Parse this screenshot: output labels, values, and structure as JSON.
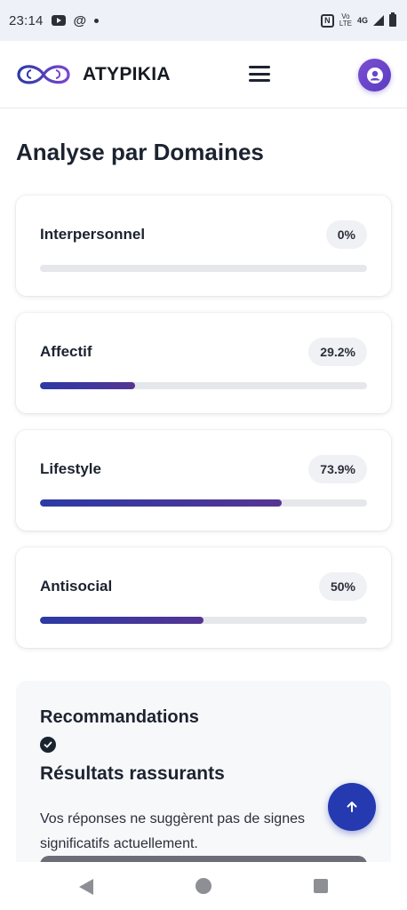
{
  "status_bar": {
    "time": "23:14",
    "network_top": "Vo",
    "network_bottom": "LTE",
    "network_gen": "4G",
    "icons": [
      "youtube-icon",
      "threads-icon",
      "notification-dot-icon",
      "nfc-icon",
      "signal-icon",
      "battery-icon"
    ]
  },
  "header": {
    "brand": "ATYPIKIA",
    "logo_icon": "infinity-brain-logo-icon",
    "menu_icon": "hamburger-menu-icon",
    "avatar_icon": "user-circle-icon"
  },
  "main": {
    "title": "Analyse par Domaines",
    "domains": [
      {
        "label": "Interpersonnel",
        "value_text": "0%",
        "value": 0
      },
      {
        "label": "Affectif",
        "value_text": "29.2%",
        "value": 29.2
      },
      {
        "label": "Lifestyle",
        "value_text": "73.9%",
        "value": 73.9
      },
      {
        "label": "Antisocial",
        "value_text": "50%",
        "value": 50
      }
    ]
  },
  "recommendations": {
    "title": "Recommandations",
    "status_icon": "check-circle-icon",
    "subtitle": "Résultats rassurants",
    "text": "Vos réponses ne suggèrent pas de signes significatifs actuellement."
  },
  "scroll_top": {
    "icon": "arrow-up-icon"
  },
  "nav": {
    "icons": [
      "back-triangle-icon",
      "home-circle-icon",
      "recents-square-icon"
    ]
  },
  "colors": {
    "accent": "#2539b0",
    "brand_purple": "#6a45c9",
    "progress_start": "#2c3aa5",
    "progress_end": "#553593"
  }
}
